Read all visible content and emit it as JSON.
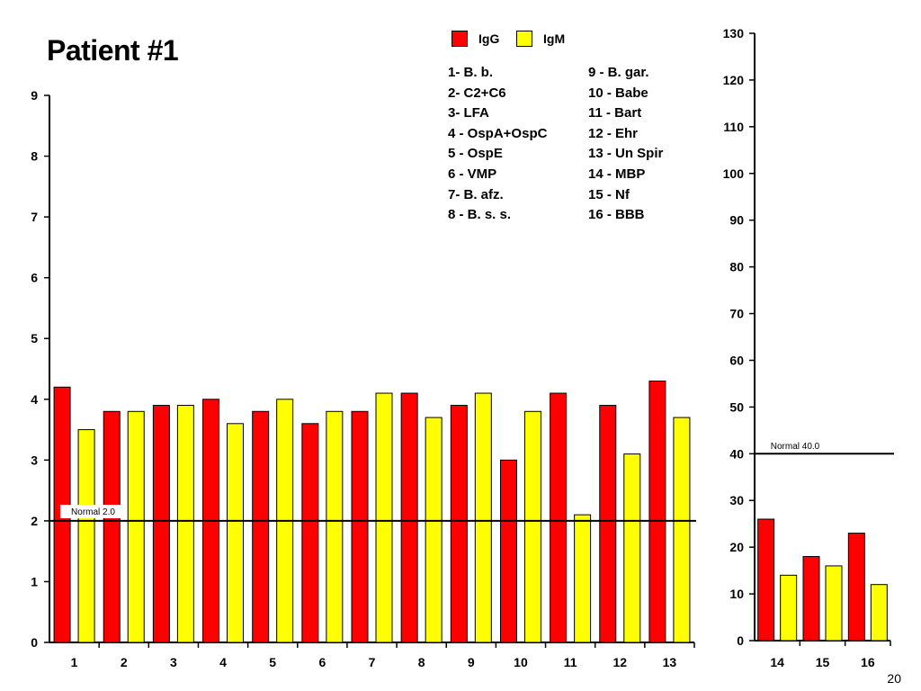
{
  "title": "Patient #1",
  "page_number": "20",
  "colors": {
    "IgG": "#ff0000",
    "IgM": "#ffff00",
    "axis": "#000000"
  },
  "legend": {
    "keys": [
      {
        "label": "IgG",
        "color": "#ff0000"
      },
      {
        "label": "IgM",
        "color": "#ffff00"
      }
    ],
    "antigens_left": [
      "1- B. b.",
      "2- C2+C6",
      "3- LFA",
      "4 - OspA+OspC",
      "5 - OspE",
      "6 - VMP",
      "7- B. afz.",
      "8 - B. s. s."
    ],
    "antigens_right": [
      "9 - B. gar.",
      "10 - Babe",
      "11 - Bart",
      "12 - Ehr",
      "13 - Un Spir",
      "14 - MBP",
      "15 - Nf",
      "16 - BBB"
    ]
  },
  "chart_data": [
    {
      "type": "bar",
      "categories": [
        "1",
        "2",
        "3",
        "4",
        "5",
        "6",
        "7",
        "8",
        "9",
        "10",
        "11",
        "12",
        "13"
      ],
      "series": [
        {
          "name": "IgG",
          "values": [
            4.2,
            3.8,
            3.9,
            4.0,
            3.8,
            3.6,
            3.8,
            4.1,
            3.9,
            3.0,
            4.1,
            3.9,
            4.3
          ]
        },
        {
          "name": "IgM",
          "values": [
            3.5,
            3.8,
            3.9,
            3.6,
            4.0,
            3.8,
            4.1,
            3.7,
            4.1,
            3.8,
            2.1,
            3.1,
            3.7
          ]
        }
      ],
      "ylim": [
        0,
        9
      ],
      "yticks": [
        "0",
        "1",
        "2",
        "3",
        "4",
        "5",
        "6",
        "7",
        "8",
        "9"
      ],
      "reference_line": {
        "value": 2.0,
        "label": "Normal 2.0"
      },
      "grid": false
    },
    {
      "type": "bar",
      "categories": [
        "14",
        "15",
        "16"
      ],
      "series": [
        {
          "name": "IgG",
          "values": [
            26,
            18,
            23
          ]
        },
        {
          "name": "IgM",
          "values": [
            14,
            16,
            12
          ]
        }
      ],
      "ylim": [
        0,
        130
      ],
      "yticks": [
        "0",
        "10",
        "20",
        "30",
        "40",
        "50",
        "60",
        "70",
        "80",
        "90",
        "100",
        "110",
        "120",
        "130"
      ],
      "reference_line": {
        "value": 40.0,
        "label": "Normal 40.0"
      },
      "grid": false
    }
  ]
}
